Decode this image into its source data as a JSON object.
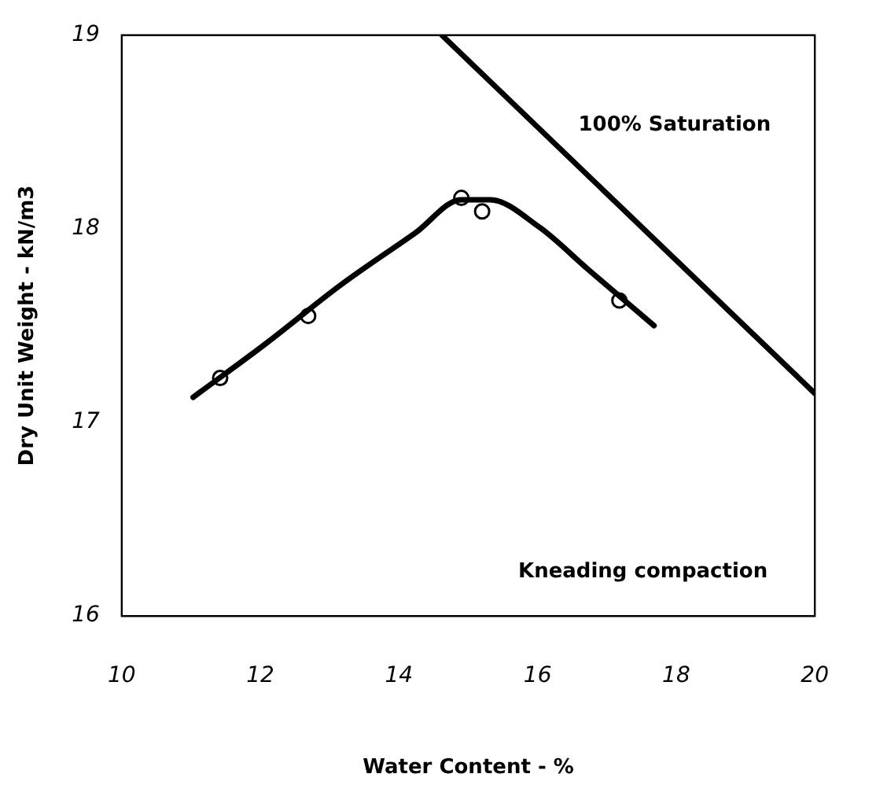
{
  "chart_data": {
    "type": "scatter",
    "xlabel": "Water Content - %",
    "ylabel": "Dry Unit Weight - kN/m3",
    "xlim": [
      10,
      20
    ],
    "ylim": [
      16,
      19
    ],
    "xticks": [
      10,
      12,
      14,
      16,
      18,
      20
    ],
    "yticks": [
      16,
      17,
      18,
      19
    ],
    "grid": false,
    "legend": false,
    "series": [
      {
        "marker": "circle",
        "color": "#000000",
        "x": [
          11.42,
          12.69,
          14.9,
          15.2,
          17.18
        ],
        "values": [
          17.23,
          17.55,
          18.16,
          18.09,
          17.63
        ]
      },
      {
        "type": "line",
        "marker": "none",
        "line_style": "solid",
        "color": "#000000",
        "x": [
          11.03,
          12.09,
          13.16,
          14.24,
          14.9,
          15.31,
          16.02,
          16.73,
          17.68
        ],
        "values": [
          17.13,
          17.41,
          17.71,
          17.98,
          18.15,
          18.15,
          18.01,
          17.79,
          17.5
        ]
      },
      {
        "type": "line",
        "marker": "none",
        "line_style": "solid",
        "color": "#000000",
        "x": [
          14.62,
          20
        ],
        "values": [
          19,
          17.15
        ]
      }
    ],
    "annotations": [
      "100% Saturation",
      "Kneading compaction"
    ]
  }
}
